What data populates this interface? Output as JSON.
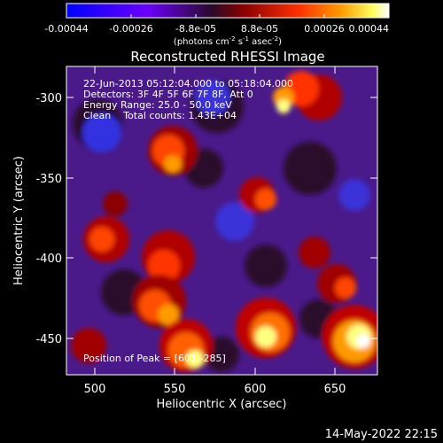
{
  "colorbar": {
    "ticks": [
      "-0.00044",
      "-0.00026",
      "-8.8e-05",
      "8.8e-05",
      "0.00026",
      "0.00044"
    ],
    "units": "(photons cm",
    "units_sup1": "-2",
    "units_mid": " s",
    "units_sup2": "-1",
    "units_end": " asec",
    "units_sup3": "-2",
    "units_close": ")",
    "colors": [
      "#0000ff",
      "#6a00ff",
      "#3a0a3a",
      "#8b0000",
      "#ff3000",
      "#ff8c00",
      "#ffff60",
      "#ffffff"
    ]
  },
  "image": {
    "title": "Reconstructed RHESSI Image",
    "info_lines": [
      "22-Jun-2013 05:12:04.000 to 05:18:04.000",
      "Detectors: 3F 4F 5F 6F 7F 8F, Att 0",
      "Energy Range: 25.0 - 50.0 keV",
      "Clean    Total counts: 1.43E+04"
    ],
    "peak_label": "Position of Peak = [601,-285]"
  },
  "axes": {
    "xlabel": "Heliocentric X (arcsec)",
    "ylabel": "Heliocentric Y (arcsec)",
    "xticks": [
      "500",
      "550",
      "600",
      "650"
    ],
    "yticks": [
      "-300",
      "-350",
      "-400",
      "-450"
    ]
  },
  "footer": {
    "timestamp": "14-May-2022 22:15"
  }
}
